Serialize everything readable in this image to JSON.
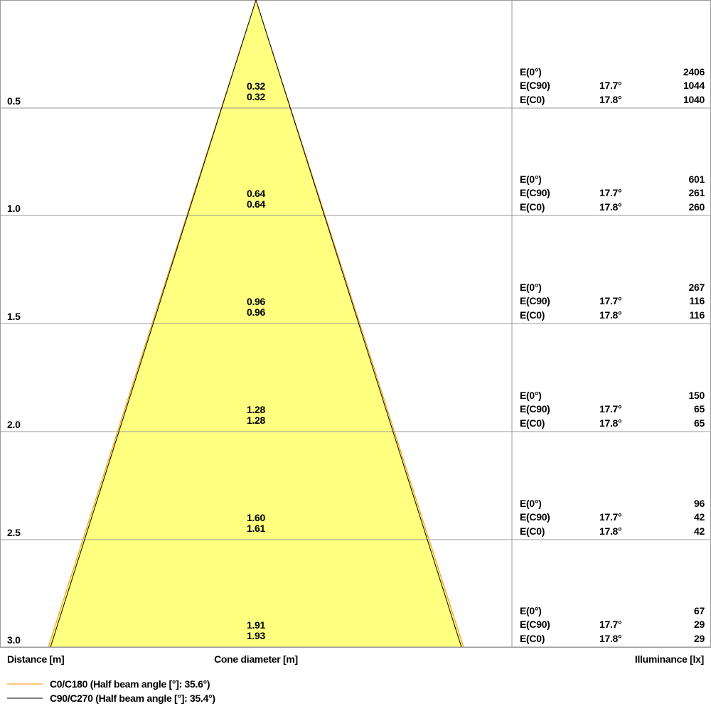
{
  "colors": {
    "cone_fill": "#ffff80",
    "c0_line": "#ff8c00",
    "c90_line": "#000000",
    "grid": "#999999"
  },
  "labels": {
    "distance": "Distance [m]",
    "cone_diameter": "Cone diameter [m]",
    "illuminance": "Illuminance [lx]"
  },
  "legend": [
    {
      "label": "C0/C180 (Half beam angle [°]: 35.6°)",
      "color": "#ff8c00"
    },
    {
      "label": "C90/C270 (Half beam angle [°]: 35.4°)",
      "color": "#000000"
    }
  ],
  "rows": [
    {
      "distance": "0.5",
      "d1": "0.32",
      "d2": "0.32",
      "e0": "2406",
      "c90_angle": "17.7°",
      "c90": "1044",
      "c0_angle": "17.8°",
      "c0": "1040"
    },
    {
      "distance": "1.0",
      "d1": "0.64",
      "d2": "0.64",
      "e0": "601",
      "c90_angle": "17.7°",
      "c90": "261",
      "c0_angle": "17.8°",
      "c0": "260"
    },
    {
      "distance": "1.5",
      "d1": "0.96",
      "d2": "0.96",
      "e0": "267",
      "c90_angle": "17.7°",
      "c90": "116",
      "c0_angle": "17.8°",
      "c0": "116"
    },
    {
      "distance": "2.0",
      "d1": "1.28",
      "d2": "1.28",
      "e0": "150",
      "c90_angle": "17.7°",
      "c90": "65",
      "c0_angle": "17.8°",
      "c0": "65"
    },
    {
      "distance": "2.5",
      "d1": "1.60",
      "d2": "1.61",
      "e0": "96",
      "c90_angle": "17.7°",
      "c90": "42",
      "c0_angle": "17.8°",
      "c0": "42"
    },
    {
      "distance": "3.0",
      "d1": "1.91",
      "d2": "1.93",
      "e0": "67",
      "c90_angle": "17.7°",
      "c90": "29",
      "c0_angle": "17.8°",
      "c0": "29"
    }
  ],
  "e_labels": {
    "e0": "E(0°)",
    "c90": "E(C90)",
    "c0": "E(C0)"
  }
}
